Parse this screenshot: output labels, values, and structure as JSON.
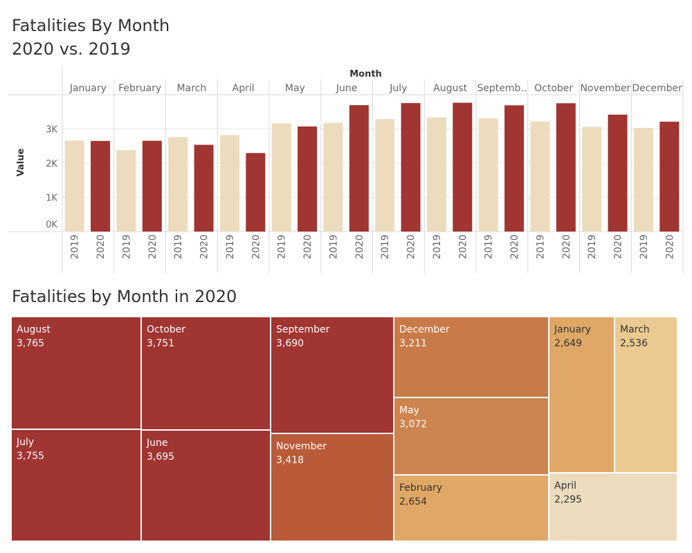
{
  "titles": {
    "top_line1": "Fatalities By Month",
    "top_line2": "2020 vs. 2019",
    "bottom": "Fatalities by Month in 2020"
  },
  "colors": {
    "y2019": "#ecdcbd",
    "y2020": "#a03532",
    "grid": "#e6e6e6",
    "divider": "#d9d9d9",
    "treemap_scale": [
      "#a03532",
      "#b95a38",
      "#c87a48",
      "#e0a866",
      "#ebca92",
      "#ecdcbd"
    ]
  },
  "chart_data": [
    {
      "type": "bar",
      "title": "Fatalities By Month 2020 vs. 2019",
      "column_header": "Month",
      "ylabel": "Value",
      "yticks": [
        "0K",
        "1K",
        "2K",
        "3K"
      ],
      "ylim": [
        0,
        4000
      ],
      "grid": true,
      "categories": [
        "January",
        "February",
        "March",
        "April",
        "May",
        "June",
        "July",
        "August",
        "Septemb..",
        "October",
        "November",
        "December"
      ],
      "series": [
        {
          "name": "2019",
          "color": "#ecdcbd",
          "values": [
            2660,
            2380,
            2760,
            2820,
            3160,
            3180,
            3290,
            3340,
            3310,
            3220,
            3060,
            3030
          ]
        },
        {
          "name": "2020",
          "color": "#a03532",
          "values": [
            2649,
            2654,
            2536,
            2295,
            3072,
            3695,
            3755,
            3765,
            3690,
            3751,
            3418,
            3211
          ]
        }
      ]
    },
    {
      "type": "treemap",
      "title": "Fatalities by Month in 2020",
      "items": [
        {
          "label": "August",
          "value": 3765,
          "display": "3,765"
        },
        {
          "label": "July",
          "value": 3755,
          "display": "3,755"
        },
        {
          "label": "October",
          "value": 3751,
          "display": "3,751"
        },
        {
          "label": "June",
          "value": 3695,
          "display": "3,695"
        },
        {
          "label": "September",
          "value": 3690,
          "display": "3,690"
        },
        {
          "label": "November",
          "value": 3418,
          "display": "3,418"
        },
        {
          "label": "December",
          "value": 3211,
          "display": "3,211"
        },
        {
          "label": "May",
          "value": 3072,
          "display": "3,072"
        },
        {
          "label": "February",
          "value": 2654,
          "display": "2,654"
        },
        {
          "label": "January",
          "value": 2649,
          "display": "2,649"
        },
        {
          "label": "March",
          "value": 2536,
          "display": "2,536"
        },
        {
          "label": "April",
          "value": 2295,
          "display": "2,295"
        }
      ]
    }
  ]
}
